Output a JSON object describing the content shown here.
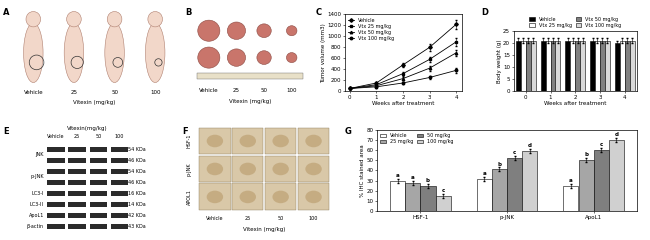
{
  "panel_labels": [
    "A",
    "B",
    "C",
    "D",
    "E",
    "F",
    "G"
  ],
  "photos_mice": {
    "groups": [
      "Vehicle",
      "25",
      "50",
      "100"
    ],
    "xlabel": "Vitexin (mg/kg)"
  },
  "photos_tumors": {
    "groups": [
      "Vehicle",
      "25",
      "50",
      "100"
    ],
    "xlabel": "Vitexin (mg/kg)"
  },
  "blot": {
    "title": "Vitexin(mg/kg)",
    "lanes": [
      "Vehicle",
      "25",
      "50",
      "100"
    ],
    "rows": [
      {
        "label": "JNK",
        "kda": [
          "54 KDa",
          "46 KDa"
        ]
      },
      {
        "label": "p-JNK",
        "kda": [
          "54 KDa",
          "46 KDa"
        ]
      },
      {
        "label": "LC3-I",
        "kda": [
          "16 KDa"
        ]
      },
      {
        "label": "LC3-II",
        "kda": [
          "14 KDa"
        ]
      },
      {
        "label": "ApoL1",
        "kda": [
          "42 KDa"
        ]
      },
      {
        "label": "β-actin",
        "kda": [
          "43 KDa"
        ]
      }
    ]
  },
  "ihc": {
    "rows": [
      "HSF-1",
      "p-JNK",
      "APOL1"
    ],
    "columns": [
      "Vehicle",
      "25",
      "50",
      "100"
    ],
    "xlabel": "Vitexin (mg/kg)"
  },
  "chart_data": [
    {
      "type": "line",
      "x": [
        0,
        1,
        2,
        3,
        4
      ],
      "xlim": [
        -0.2,
        4.2
      ],
      "xticks": [
        0,
        1,
        2,
        3,
        4
      ],
      "ylim": [
        0,
        1400
      ],
      "yticks": [
        0,
        200,
        400,
        600,
        800,
        1000,
        1200,
        1400
      ],
      "xlabel": "Weeks after treatment",
      "ylabel": "Tumor volume (mm3)",
      "legend": "upper left",
      "series": [
        {
          "name": "Vehicle",
          "color": "#000000",
          "marker": "diamond",
          "values": [
            50,
            150,
            480,
            800,
            1220
          ],
          "errors": [
            10,
            20,
            40,
            60,
            80
          ]
        },
        {
          "name": "Vtx 25 mg/kg",
          "color": "#000000",
          "marker": "square",
          "values": [
            50,
            120,
            320,
            580,
            900
          ],
          "errors": [
            10,
            20,
            35,
            50,
            70
          ]
        },
        {
          "name": "Vtx 50 mg/kg",
          "color": "#000000",
          "marker": "triangle",
          "values": [
            50,
            100,
            230,
            420,
            700
          ],
          "errors": [
            10,
            15,
            30,
            45,
            60
          ]
        },
        {
          "name": "Vtx 100 mg/kg",
          "color": "#000000",
          "marker": "circle",
          "values": [
            50,
            80,
            150,
            250,
            380
          ],
          "errors": [
            10,
            15,
            20,
            30,
            40
          ]
        }
      ]
    },
    {
      "type": "bar",
      "categories": [
        "0",
        "1",
        "2",
        "3",
        "4"
      ],
      "xlabel": "Weeks after treatment",
      "ylabel": "Body weight (g)",
      "ylim": [
        0,
        25
      ],
      "yticks": [
        0,
        5,
        10,
        15,
        20,
        25
      ],
      "legend": "top",
      "series": [
        {
          "name": "Vehicle",
          "color": "#000000",
          "values": [
            21,
            21,
            21,
            21,
            20
          ],
          "errors": [
            1,
            1,
            1,
            1,
            1
          ]
        },
        {
          "name": "Vtx 25 mg/kg",
          "color": "#ffffff",
          "values": [
            21,
            21,
            21,
            21,
            21
          ],
          "errors": [
            1,
            1,
            1,
            1,
            1
          ]
        },
        {
          "name": "Vtx 50 mg/kg",
          "color": "#808080",
          "values": [
            21,
            21,
            21,
            21,
            21
          ],
          "errors": [
            1,
            1,
            1,
            1,
            1
          ]
        },
        {
          "name": "Vtx 100 mg/kg",
          "color": "#d9d9d9",
          "values": [
            21,
            21,
            21,
            21,
            21
          ],
          "errors": [
            1,
            1,
            1,
            1,
            1
          ]
        }
      ]
    },
    {
      "type": "bar",
      "categories": [
        "HSF-1",
        "p-JNK",
        "ApoL1"
      ],
      "ylabel": "% IHC stained area",
      "ylim": [
        0,
        80
      ],
      "yticks": [
        0,
        10,
        20,
        30,
        40,
        50,
        60,
        70,
        80
      ],
      "legend": "upper left",
      "series": [
        {
          "name": "Vehicle",
          "color": "#ffffff",
          "values": [
            30,
            32,
            25
          ],
          "errors": [
            2,
            2,
            2
          ],
          "annotations": [
            "a",
            "a",
            "a"
          ]
        },
        {
          "name": "25 mg/kg",
          "color": "#a6a6a6",
          "values": [
            28,
            41,
            50
          ],
          "errors": [
            2,
            2,
            2
          ],
          "annotations": [
            "a",
            "b",
            "b"
          ]
        },
        {
          "name": "50 mg/kg",
          "color": "#7f7f7f",
          "values": [
            25,
            52,
            60
          ],
          "errors": [
            2,
            2,
            2
          ],
          "annotations": [
            "b",
            "c",
            "c"
          ]
        },
        {
          "name": "100 mg/kg",
          "color": "#d0d0d0",
          "values": [
            15,
            59,
            70
          ],
          "errors": [
            2,
            2,
            2
          ],
          "annotations": [
            "c",
            "d",
            "d"
          ]
        }
      ]
    }
  ]
}
